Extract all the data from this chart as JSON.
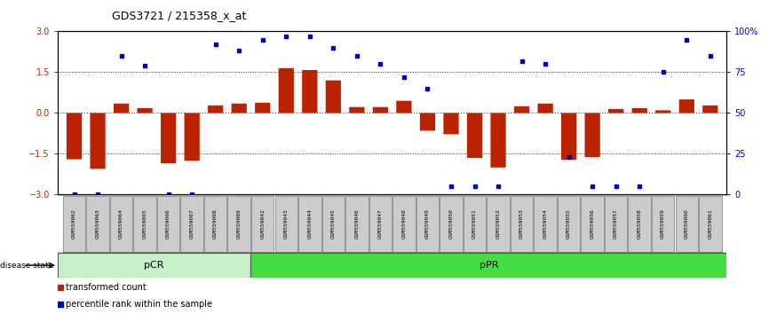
{
  "title": "GDS3721 / 215358_x_at",
  "samples": [
    "GSM559062",
    "GSM559063",
    "GSM559064",
    "GSM559065",
    "GSM559066",
    "GSM559067",
    "GSM559068",
    "GSM559069",
    "GSM559042",
    "GSM559043",
    "GSM559044",
    "GSM559045",
    "GSM559046",
    "GSM559047",
    "GSM559048",
    "GSM559049",
    "GSM559050",
    "GSM559051",
    "GSM559052",
    "GSM559053",
    "GSM559054",
    "GSM559055",
    "GSM559056",
    "GSM559057",
    "GSM559058",
    "GSM559059",
    "GSM559060",
    "GSM559061"
  ],
  "bar_values": [
    -1.7,
    -2.05,
    0.35,
    0.18,
    -1.85,
    -1.75,
    0.28,
    0.35,
    0.38,
    1.65,
    1.58,
    1.2,
    0.22,
    0.22,
    0.45,
    -0.65,
    -0.78,
    -1.65,
    -2.0,
    0.25,
    0.35,
    -1.72,
    -1.62,
    0.15,
    0.18,
    0.1,
    0.5,
    0.28
  ],
  "dot_values": [
    0,
    0,
    85,
    79,
    0,
    0,
    92,
    88,
    95,
    97,
    97,
    90,
    85,
    80,
    72,
    65,
    5,
    5,
    5,
    82,
    80,
    23,
    5,
    5,
    5,
    75,
    95,
    85
  ],
  "pCR_count": 8,
  "pCR_color": "#C8F0C8",
  "pPR_color": "#44DD44",
  "bar_color": "#BB2200",
  "dot_color": "#0000CC",
  "ylim": [
    -3,
    3
  ],
  "yticks_left": [
    -3,
    -1.5,
    0,
    1.5,
    3
  ],
  "yticks_right": [
    0,
    25,
    50,
    75,
    100
  ],
  "zero_line_color": "#BB2200",
  "dotted_line_color": "#333333",
  "bg_color": "#ffffff"
}
